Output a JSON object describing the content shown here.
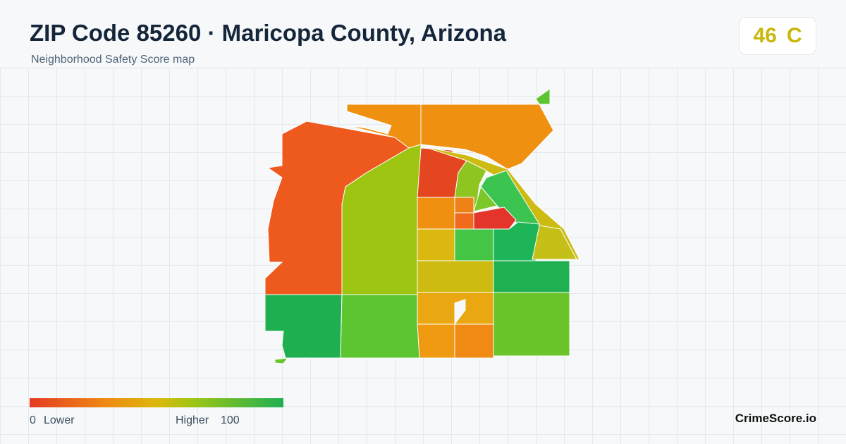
{
  "header": {
    "title": "ZIP Code 85260 · Maricopa County, Arizona",
    "subtitle": "Neighborhood Safety Score map"
  },
  "score": {
    "value": "46",
    "grade": "C"
  },
  "legend": {
    "min": "0",
    "min_label": "Lower",
    "max_label": "Higher",
    "max": "100"
  },
  "brand": "CrimeScore.io"
}
